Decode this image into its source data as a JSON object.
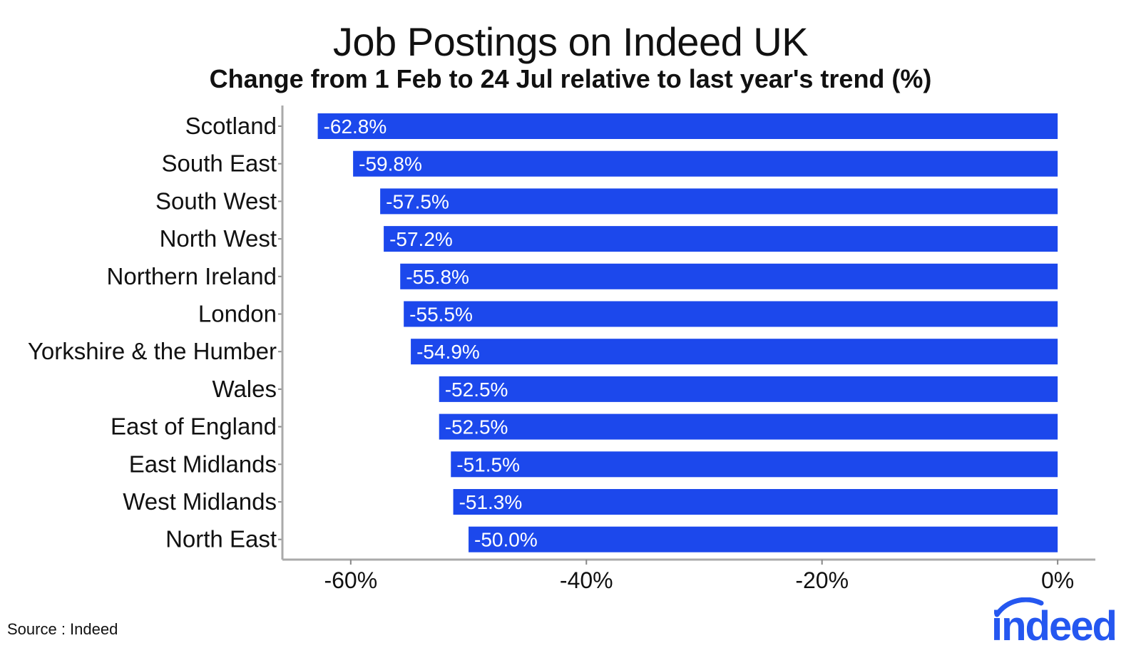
{
  "chart_data": {
    "type": "bar",
    "orientation": "horizontal",
    "title": "Job Postings on Indeed UK",
    "subtitle": "Change from 1 Feb to 24 Jul relative to last year's trend (%)",
    "categories": [
      "Scotland",
      "South East",
      "South West",
      "North West",
      "Northern Ireland",
      "London",
      "Yorkshire & the Humber",
      "Wales",
      "East of England",
      "East Midlands",
      "West Midlands",
      "North East"
    ],
    "values": [
      -62.8,
      -59.8,
      -57.5,
      -57.2,
      -55.8,
      -55.5,
      -54.9,
      -52.5,
      -52.5,
      -51.5,
      -51.3,
      -50.0
    ],
    "data_labels": [
      "-62.8%",
      "-59.8%",
      "-57.5%",
      "-57.2%",
      "-55.8%",
      "-55.5%",
      "-54.9%",
      "-52.5%",
      "-52.5%",
      "-51.5%",
      "-51.3%",
      "-50.0%"
    ],
    "xticks": [
      -60,
      -40,
      -20,
      0
    ],
    "xtick_labels": [
      "-60%",
      "-40%",
      "-20%",
      "0%"
    ],
    "xlim": [
      -65.8,
      3.2
    ],
    "xlabel": "",
    "ylabel": "",
    "grid": false,
    "bar_color": "#1c48ec"
  },
  "footer": {
    "source": "Source : Indeed",
    "logo_text": "indeed",
    "brand_color": "#2557f0"
  }
}
